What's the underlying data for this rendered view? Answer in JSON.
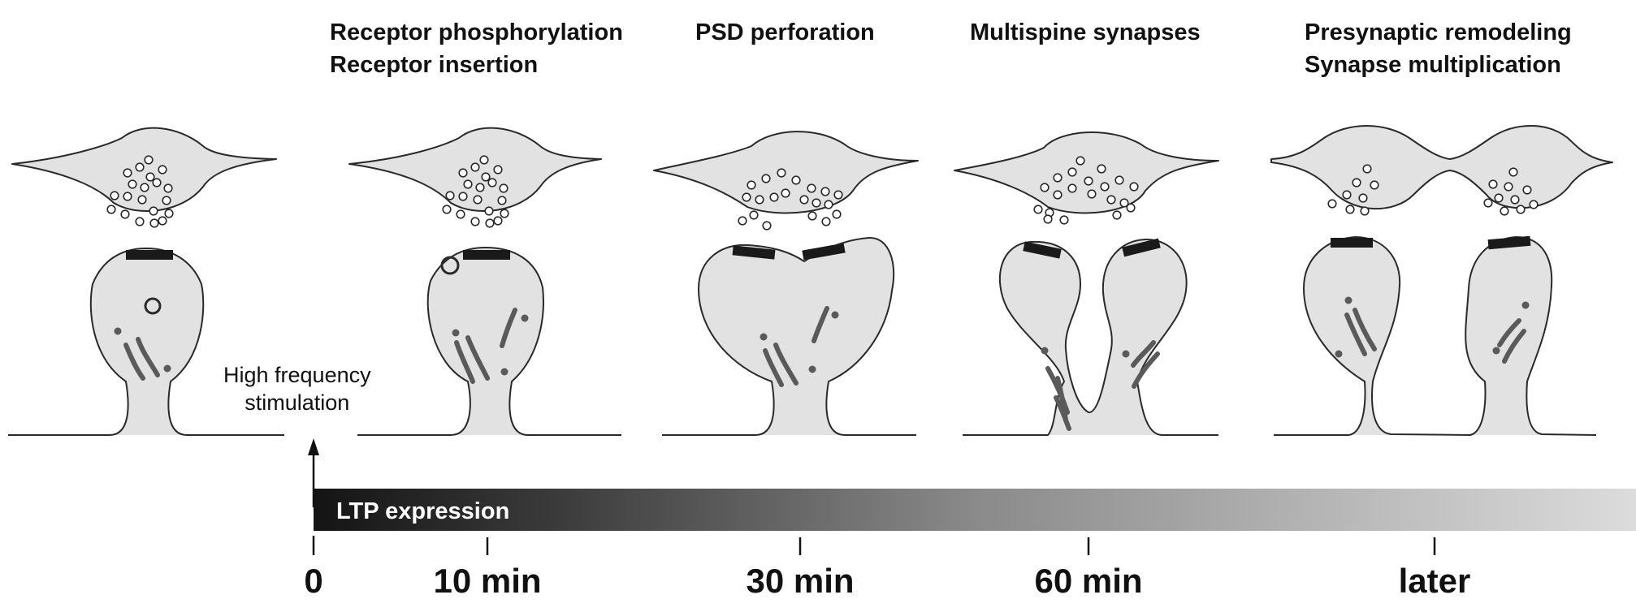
{
  "stages": [
    {
      "lines": [
        "Receptor phosphorylation",
        "Receptor insertion"
      ]
    },
    {
      "lines": [
        "PSD perforation"
      ]
    },
    {
      "lines": [
        "Multispine synapses"
      ]
    },
    {
      "lines": [
        "Presynaptic remodeling",
        "Synapse multiplication"
      ]
    }
  ],
  "stimulus": {
    "lines": [
      "High frequency",
      "stimulation"
    ]
  },
  "bar": {
    "label": "LTP expression"
  },
  "timeline": {
    "ticks": [
      "0",
      "10 min",
      "30 min",
      "60 min",
      "later"
    ]
  },
  "colors": {
    "fill": "#e2e2e2",
    "stroke": "#2a2a2a",
    "psd": "#1a1a1a",
    "organelle": "#5a5a5a",
    "bar_dark": "#141414",
    "bar_light": "#dcdcdc"
  }
}
